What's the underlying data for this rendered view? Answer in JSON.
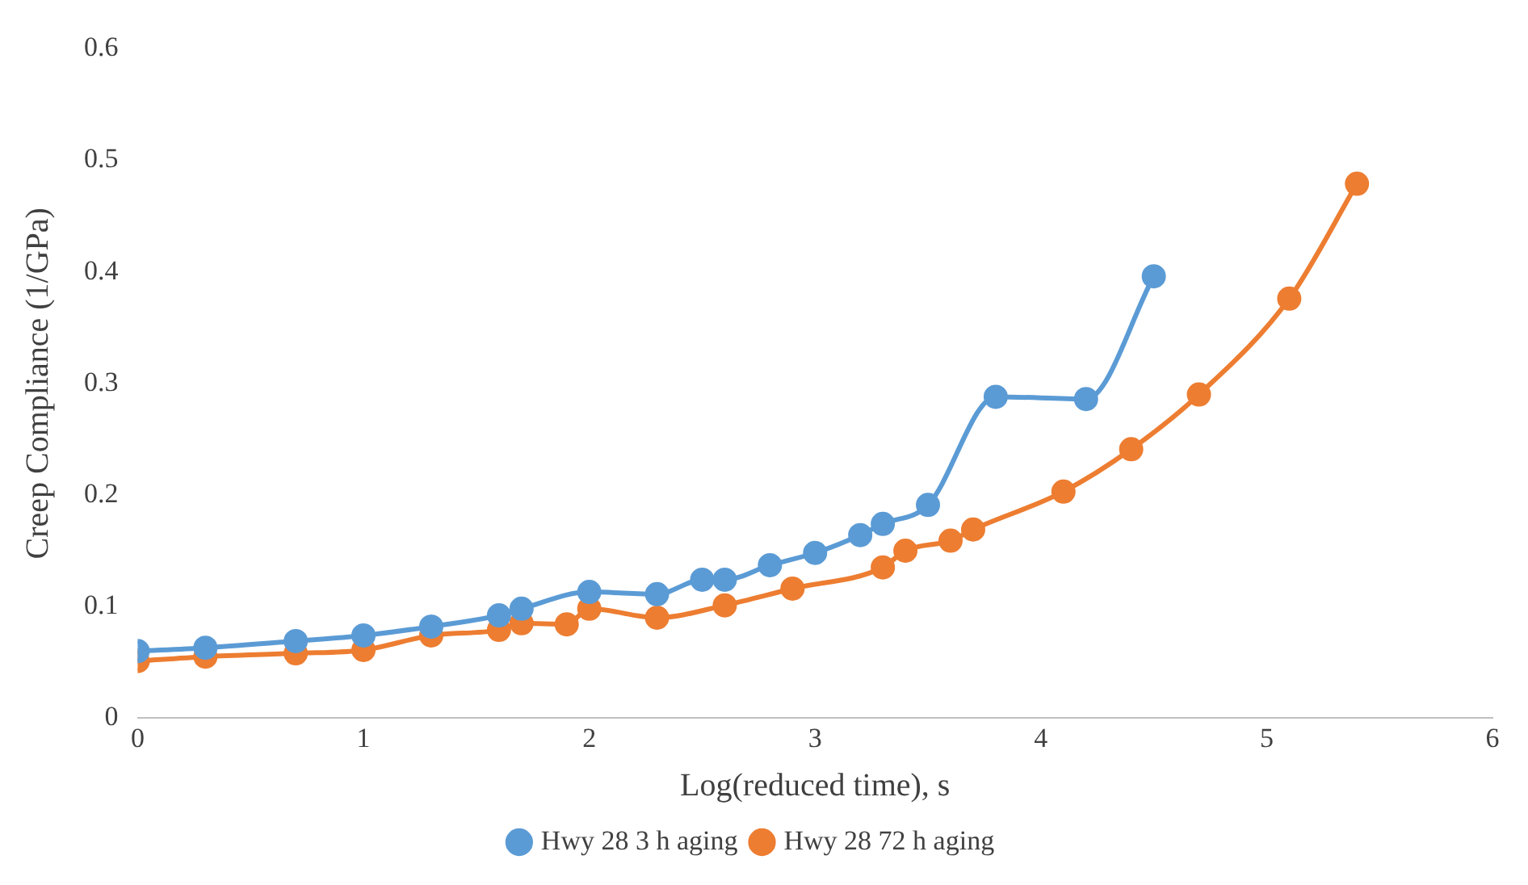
{
  "chart_data": {
    "type": "line",
    "xlabel": "Log(reduced time), s",
    "ylabel": "Creep Compliance (1/GPa)",
    "xlim": [
      0,
      6
    ],
    "xticks": [
      0,
      1,
      2,
      3,
      4,
      5,
      6
    ],
    "ylim": [
      0,
      0.6
    ],
    "yticks": [
      0,
      0.1,
      0.2,
      0.3,
      0.4,
      0.5,
      0.6
    ],
    "grid": false,
    "legend": "bottom",
    "marker": "circle",
    "line_style": "solid",
    "series": [
      {
        "name": "Hwy 28 3 h aging",
        "color": "#5b9bd5",
        "x": [
          0,
          0.3,
          0.7,
          1,
          1.3,
          1.6,
          1.7,
          2,
          2.3,
          2.5,
          2.6,
          2.8,
          3,
          3.2,
          3.3,
          3.5,
          3.8,
          4.2,
          4.5
        ],
        "values": [
          0.06,
          0.063,
          0.069,
          0.074,
          0.082,
          0.092,
          0.098,
          0.113,
          0.111,
          0.124,
          0.124,
          0.137,
          0.148,
          0.164,
          0.174,
          0.191,
          0.288,
          0.286,
          0.396
        ]
      },
      {
        "name": "Hwy 28 72 h aging",
        "color": "#ed7d31",
        "x": [
          0,
          0.3,
          0.7,
          1,
          1.3,
          1.6,
          1.7,
          1.9,
          2,
          2.3,
          2.6,
          2.9,
          3.3,
          3.4,
          3.6,
          3.7,
          4.1,
          4.4,
          4.7,
          5.1,
          5.4
        ],
        "values": [
          0.051,
          0.055,
          0.058,
          0.061,
          0.074,
          0.079,
          0.085,
          0.084,
          0.098,
          0.09,
          0.101,
          0.116,
          0.135,
          0.15,
          0.159,
          0.169,
          0.203,
          0.241,
          0.29,
          0.376,
          0.479
        ]
      }
    ]
  }
}
